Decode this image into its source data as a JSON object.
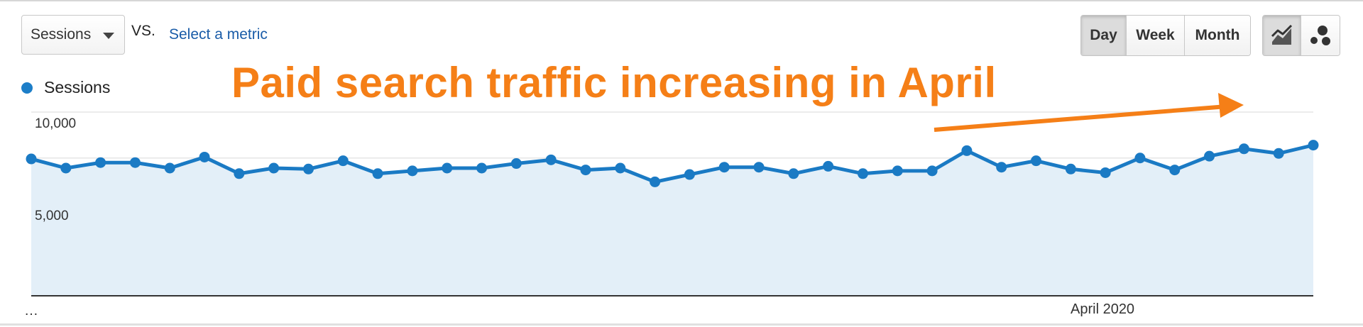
{
  "metric_selector": {
    "selected": "Sessions",
    "vs_label": "VS.",
    "compare_link": "Select a metric"
  },
  "granularity": {
    "options": [
      "Day",
      "Week",
      "Month"
    ],
    "active": "Day"
  },
  "chart_type_buttons": {
    "active": "line-chart-icon",
    "icons": [
      "line-chart-icon",
      "motion-chart-icon"
    ]
  },
  "annotation": {
    "text": "Paid search traffic increasing in April",
    "color": "#f57f17"
  },
  "colors": {
    "series": "#1a7ac4",
    "area_fill": "#e3eff8",
    "accent": "#f57f17"
  },
  "chart_data": {
    "type": "area",
    "legend": "Sessions",
    "legend_position": "top-left",
    "grid": true,
    "ylim": [
      0,
      10000
    ],
    "y_ticks": [
      {
        "value": 10000,
        "label": "10,000"
      },
      {
        "value": 5000,
        "label": "5,000"
      }
    ],
    "x_labels": [
      {
        "index": 0,
        "label": "…"
      },
      {
        "index": 31,
        "label": "April 2020"
      }
    ],
    "series": [
      {
        "name": "Sessions",
        "values": [
          7450,
          6950,
          7250,
          7250,
          6950,
          7550,
          6650,
          6950,
          6900,
          7350,
          6650,
          6800,
          6950,
          6950,
          7200,
          7400,
          6850,
          6950,
          6200,
          6600,
          7000,
          7000,
          6650,
          7050,
          6650,
          6800,
          6800,
          7900,
          7000,
          7350,
          6900,
          6700,
          7500,
          6850,
          7600,
          8000,
          7750,
          8200
        ]
      }
    ]
  }
}
